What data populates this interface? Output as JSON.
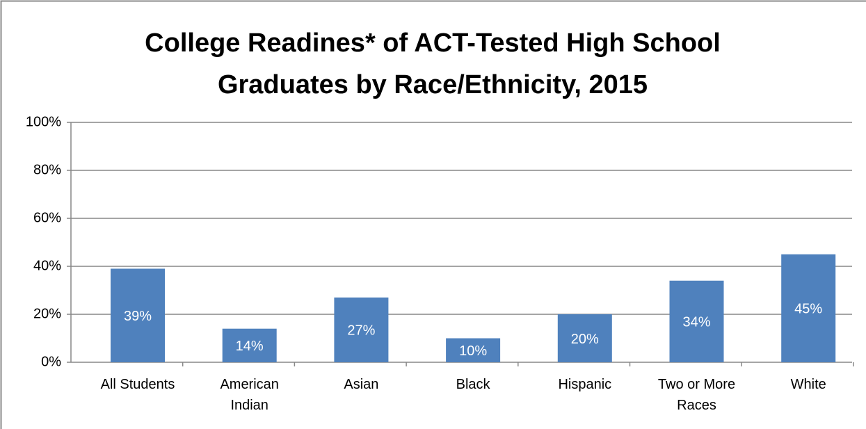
{
  "chart_data": {
    "type": "bar",
    "title": [
      "College Readines* of ACT-Tested High School",
      "Graduates by Race/Ethnicity, 2015"
    ],
    "categories": [
      "All Students",
      "American Indian",
      "Asian",
      "Black",
      "Hispanic",
      "Two or More Races",
      "White"
    ],
    "values": [
      39,
      14,
      27,
      10,
      20,
      34,
      45
    ],
    "value_labels": [
      "39%",
      "14%",
      "27%",
      "10%",
      "20%",
      "34%",
      "45%"
    ],
    "color": "#4f81bd",
    "ylim": [
      0,
      100
    ],
    "yticks": [
      {
        "value": 0,
        "label": "0%"
      },
      {
        "value": 20,
        "label": "20%"
      },
      {
        "value": 40,
        "label": "40%"
      },
      {
        "value": 60,
        "label": "60%"
      },
      {
        "value": 80,
        "label": "80%"
      },
      {
        "value": 100,
        "label": "100%"
      }
    ],
    "grid": true
  }
}
